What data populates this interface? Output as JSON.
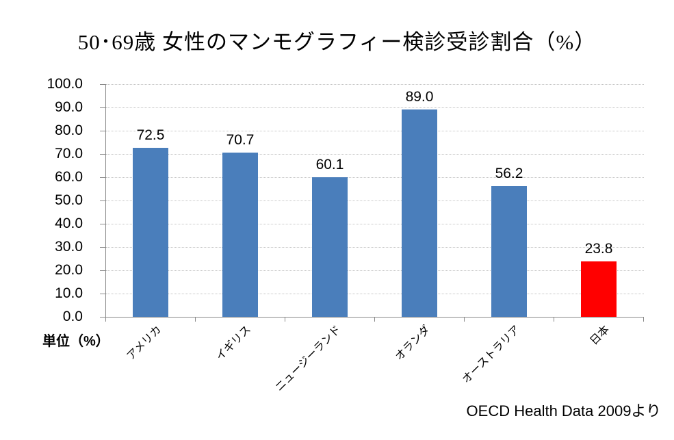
{
  "chart_data": {
    "type": "bar",
    "title": "50･69歳 女性のマンモグラフィー検診受診割合（%）",
    "unit_label": "単位（%）",
    "source_note": "OECD Health Data 2009より",
    "categories": [
      "アメリカ",
      "イギリス",
      "ニュージーランド",
      "オランダ",
      "オーストラリア",
      "日本"
    ],
    "values": [
      72.5,
      70.7,
      60.1,
      89.0,
      56.2,
      23.8
    ],
    "value_labels": [
      "72.5",
      "70.7",
      "60.1",
      "89.0",
      "56.2",
      "23.8"
    ],
    "bar_colors": [
      "#4A7EBB",
      "#4A7EBB",
      "#4A7EBB",
      "#4A7EBB",
      "#4A7EBB",
      "#FF0000"
    ],
    "highlighted_category": "日本",
    "ylim": [
      0,
      100
    ],
    "ytick_step": 10,
    "ytick_labels": [
      "100.0",
      "90.0",
      "80.0",
      "70.0",
      "60.0",
      "50.0",
      "40.0",
      "30.0",
      "20.0",
      "10.0",
      "0.0"
    ],
    "grid": "horizontal-dotted",
    "legend": "none"
  },
  "colors": {
    "bar_default": "#4A7EBB",
    "bar_highlight": "#FF0000",
    "axis": "#898989",
    "gridline": "#C3C3C3",
    "text": "#000000",
    "background": "#FFFFFF"
  }
}
